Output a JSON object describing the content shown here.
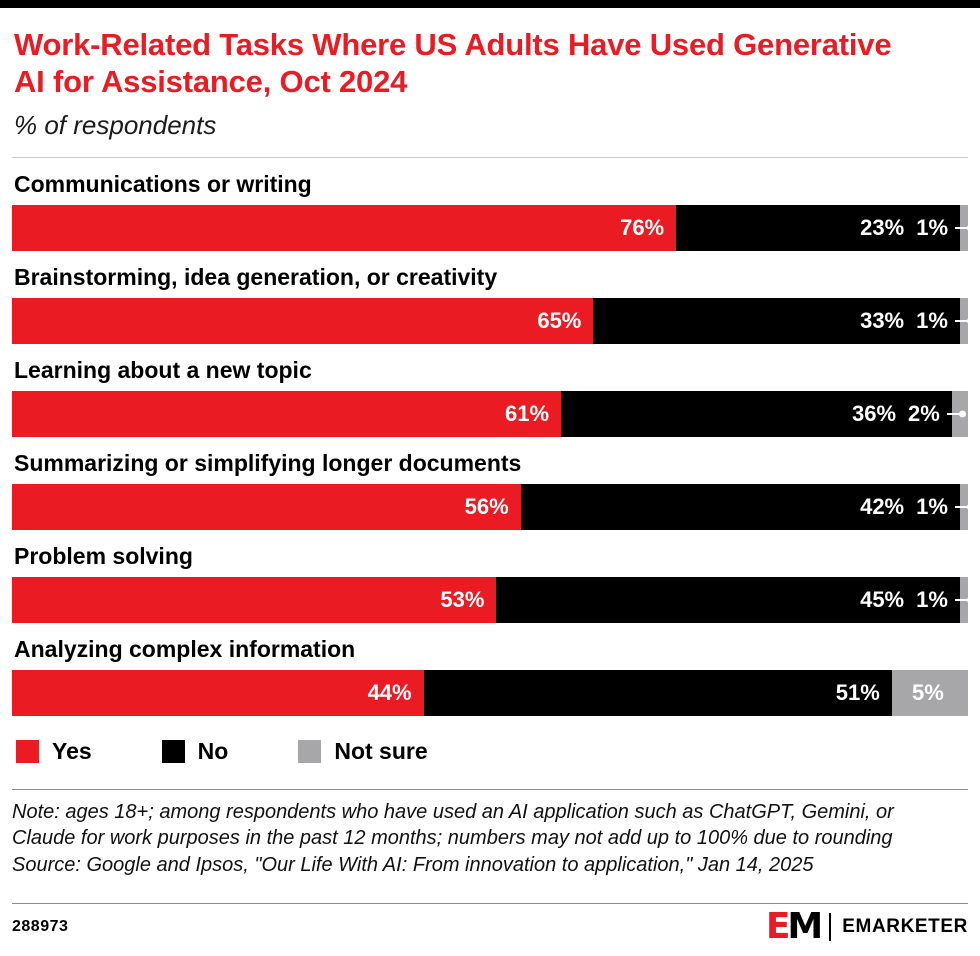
{
  "header": {
    "title": "Work-Related Tasks Where US Adults Have Used Generative AI for Assistance, Oct 2024",
    "subtitle": "% of respondents"
  },
  "chart_data": {
    "type": "bar",
    "orientation": "horizontal_stacked",
    "title": "Work-Related Tasks Where US Adults Have Used Generative AI for Assistance, Oct 2024",
    "subtitle": "% of respondents",
    "categories": [
      "Communications or writing",
      "Brainstorming, idea generation, or creativity",
      "Learning about a new topic",
      "Summarizing or simplifying longer documents",
      "Problem solving",
      "Analyzing complex information"
    ],
    "series": [
      {
        "name": "Yes",
        "color": "#EA1B22",
        "values": [
          76,
          65,
          61,
          56,
          53,
          44
        ]
      },
      {
        "name": "No",
        "color": "#000000",
        "values": [
          23,
          33,
          36,
          42,
          45,
          51
        ]
      },
      {
        "name": "Not sure",
        "color": "#A7A7A9",
        "values": [
          1,
          1,
          2,
          1,
          1,
          5
        ]
      }
    ],
    "value_suffix": "%",
    "xlim": [
      0,
      100
    ],
    "legend_position": "bottom",
    "grid": false
  },
  "legend": [
    {
      "label": "Yes",
      "color": "#EA1B22"
    },
    {
      "label": "No",
      "color": "#000000"
    },
    {
      "label": "Not sure",
      "color": "#A7A7A9"
    }
  ],
  "footnote": {
    "note": "Note: ages 18+; among respondents who have used an AI application such as ChatGPT, Gemini, or Claude for work purposes in the past 12 months; numbers may not add up to 100% due to rounding",
    "source": "Source: Google and Ipsos, \"Our Life With AI: From innovation to application,\" Jan 14, 2025"
  },
  "footer": {
    "chart_id": "288973",
    "brand_mark_e": "E",
    "brand_mark_m": "M",
    "brand_name": "EMARKETER"
  }
}
